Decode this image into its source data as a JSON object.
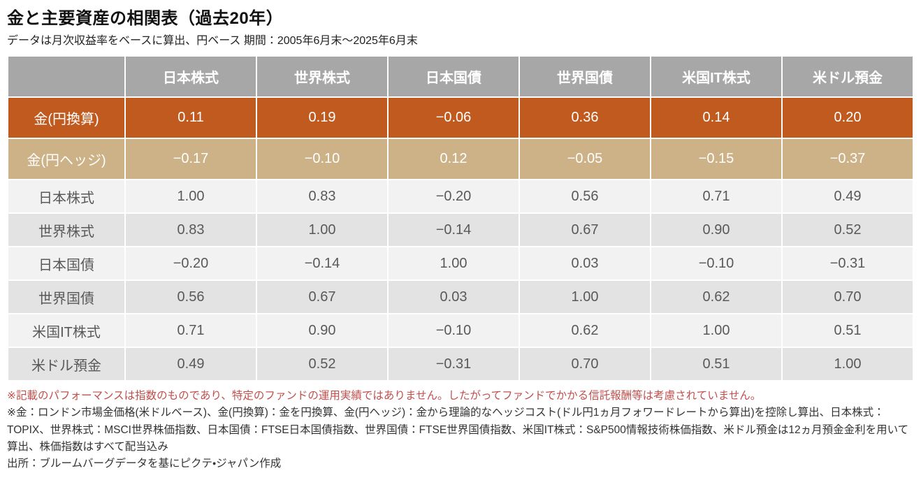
{
  "title": "金と主要資産の相関表（過去20年）",
  "subtitle": "データは月次収益率をベースに算出、円ベース 期間：2005年6月末～2025年6月末",
  "chart_data": {
    "type": "table",
    "title": "金と主要資産の相関表（過去20年）",
    "columns": [
      "日本株式",
      "世界株式",
      "日本国債",
      "世界国債",
      "米国IT株式",
      "米ドル預金"
    ],
    "rows": [
      {
        "label": "金(円換算)",
        "variant": "gold",
        "values": [
          0.11,
          0.19,
          -0.06,
          0.36,
          0.14,
          0.2
        ]
      },
      {
        "label": "金(円ヘッジ)",
        "variant": "tan",
        "values": [
          -0.17,
          -0.1,
          0.12,
          -0.05,
          -0.15,
          -0.37
        ]
      },
      {
        "label": "日本株式",
        "variant": "light",
        "values": [
          1.0,
          0.83,
          -0.2,
          0.56,
          0.71,
          0.49
        ]
      },
      {
        "label": "世界株式",
        "variant": "dark",
        "values": [
          0.83,
          1.0,
          -0.14,
          0.67,
          0.9,
          0.52
        ]
      },
      {
        "label": "日本国債",
        "variant": "light",
        "values": [
          -0.2,
          -0.14,
          1.0,
          0.03,
          -0.1,
          -0.31
        ]
      },
      {
        "label": "世界国債",
        "variant": "dark",
        "values": [
          0.56,
          0.67,
          0.03,
          1.0,
          0.62,
          0.7
        ]
      },
      {
        "label": "米国IT株式",
        "variant": "light",
        "values": [
          0.71,
          0.9,
          -0.1,
          0.62,
          1.0,
          0.51
        ]
      },
      {
        "label": "米ドル預金",
        "variant": "dark",
        "values": [
          0.49,
          0.52,
          -0.31,
          0.7,
          0.51,
          1.0
        ]
      }
    ]
  },
  "notes": {
    "disclaimer": "※記載のパフォーマンスは指数のものであり、特定のファンドの運用実績ではありません。したがってファンドでかかる信託報酬等は考慮されていません。",
    "definitions": "※金：ロンドン市場金価格(米ドルベース)、金(円換算)：金を円換算、金(円ヘッジ)：金から理論的なヘッジコスト(ドル円1ヵ月フォワードレートから算出)を控除し算出、日本株式：TOPIX、世界株式：MSCI世界株価指数、日本国債：FTSE日本国債指数、世界国債：FTSE世界国債指数、米国IT株式：S&P500情報技術株価指数、米ドル預金は12ヵ月預金金利を用いて算出、株価指数はすべて配当込み",
    "source": "出所：ブルームバーグデータを基にピクテ・ジャパン作成"
  },
  "colors": {
    "header-bg": "#a7a7a7",
    "gold-bg": "#c15a1f",
    "tan-bg": "#cdb287",
    "row-light": "#f2f2f2",
    "row-dark": "#e3e3e3",
    "note-red": "#c0504d"
  }
}
